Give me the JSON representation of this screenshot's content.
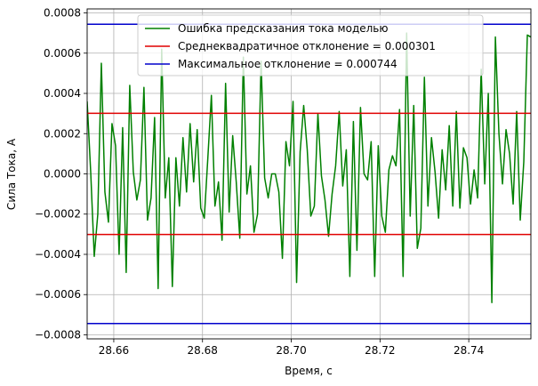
{
  "chart_data": {
    "type": "line",
    "title": "",
    "xlabel": "Время, с",
    "ylabel": "Сила Тока, А",
    "xlim": [
      28.654,
      28.754
    ],
    "ylim": [
      -0.00082,
      0.00082
    ],
    "grid": true,
    "legend_position": "top-center",
    "xticks": [
      28.66,
      28.68,
      28.7,
      28.72,
      28.74
    ],
    "xtick_labels": [
      "28.66",
      "28.68",
      "28.70",
      "28.72",
      "28.74"
    ],
    "yticks": [
      -0.0008,
      -0.0006,
      -0.0004,
      -0.0002,
      0.0,
      0.0002,
      0.0004,
      0.0006,
      0.0008
    ],
    "ytick_labels": [
      "−0.0008",
      "−0.0006",
      "−0.0004",
      "−0.0002",
      "0.0000",
      "0.0002",
      "0.0004",
      "0.0006",
      "0.0008"
    ],
    "series": [
      {
        "name": "Ошибка предсказания тока моделью",
        "color": "#008000",
        "x": [
          28.654,
          28.6548,
          28.6556,
          28.6564,
          28.6572,
          28.658,
          28.6588,
          28.6596,
          28.6604,
          28.6612,
          28.662,
          28.6628,
          28.6636,
          28.6644,
          28.6652,
          28.666,
          28.6668,
          28.6676,
          28.6684,
          28.6692,
          28.67,
          28.6708,
          28.6716,
          28.6724,
          28.6732,
          28.674,
          28.6748,
          28.6756,
          28.6764,
          28.6772,
          28.678,
          28.6788,
          28.6796,
          28.6804,
          28.6812,
          28.682,
          28.6828,
          28.6836,
          28.6844,
          28.6852,
          28.686,
          28.6868,
          28.6876,
          28.6884,
          28.6892,
          28.69,
          28.6908,
          28.6916,
          28.6924,
          28.6932,
          28.694,
          28.6948,
          28.6956,
          28.6964,
          28.6972,
          28.698,
          28.6988,
          28.6996,
          28.7004,
          28.7012,
          28.702,
          28.7028,
          28.7036,
          28.7044,
          28.7052,
          28.706,
          28.7068,
          28.7076,
          28.7084,
          28.7092,
          28.71,
          28.7108,
          28.7116,
          28.7124,
          28.7132,
          28.714,
          28.7148,
          28.7156,
          28.7164,
          28.7172,
          28.718,
          28.7188,
          28.7196,
          28.7204,
          28.7212,
          28.722,
          28.7228,
          28.7236,
          28.7244,
          28.7252,
          28.726,
          28.7268,
          28.7276,
          28.7284,
          28.7292,
          28.73,
          28.7308,
          28.7316,
          28.7324,
          28.7332,
          28.734,
          28.7348,
          28.7356,
          28.7364,
          28.7372,
          28.738,
          28.7388,
          28.7396,
          28.7404,
          28.7412,
          28.742,
          28.7428,
          28.7436,
          28.7444,
          28.7452,
          28.746,
          28.7468,
          28.7476,
          28.7484,
          28.7492,
          28.75,
          28.7508,
          28.7516,
          28.7524,
          28.7532,
          28.754
        ],
        "y": [
          0.00036,
          1e-05,
          -0.00041,
          -0.0002,
          0.00055,
          -9e-05,
          -0.00024,
          0.00025,
          0.00014,
          -0.0004,
          0.00023,
          -0.00049,
          0.00044,
          1e-05,
          -0.00013,
          -3e-05,
          0.00043,
          -0.00023,
          -0.00012,
          0.00028,
          -0.00057,
          0.00062,
          -0.00012,
          8e-05,
          -0.00056,
          8e-05,
          -0.00016,
          0.00018,
          -9e-05,
          0.00025,
          -4e-05,
          0.00022,
          -0.00017,
          -0.00022,
          8e-05,
          0.00039,
          -0.00016,
          -4e-05,
          -0.00033,
          0.00045,
          -0.00019,
          0.00019,
          -4e-05,
          -0.00032,
          0.00058,
          -0.0001,
          4e-05,
          -0.00029,
          -0.0002,
          0.00056,
          -2e-05,
          -0.00012,
          0.0,
          0.0,
          -9e-05,
          -0.00042,
          0.00016,
          4e-05,
          0.00036,
          -0.00054,
          0.00011,
          0.00034,
          0.00012,
          -0.00021,
          -0.00016,
          0.0003,
          -1e-05,
          -0.00013,
          -0.00031,
          -0.0001,
          4e-05,
          0.00031,
          -6e-05,
          0.00012,
          -0.00051,
          0.00026,
          -0.00038,
          0.00033,
          0.0,
          -3e-05,
          0.00016,
          -0.00051,
          0.00014,
          -0.00021,
          -0.00029,
          2e-05,
          9e-05,
          4e-05,
          0.00032,
          -0.00051,
          0.0007,
          -0.00021,
          0.00034,
          -0.00037,
          -0.00027,
          0.00048,
          -0.00016,
          0.00018,
          1e-05,
          -0.00022,
          0.00012,
          -8e-05,
          0.00024,
          -0.00016,
          0.00031,
          -0.00017,
          0.00013,
          8e-05,
          -0.00015,
          2e-05,
          -0.00012,
          0.00052,
          -5e-05,
          0.0004,
          -0.00064,
          0.00068,
          0.0002,
          -5e-05,
          0.00022,
          0.0001,
          -0.00015,
          0.00031,
          -0.00023,
          6e-05,
          0.00069,
          0.00068
        ]
      },
      {
        "name": "Среднеквадратичное отклонение = 0.000301",
        "color": "#e00000",
        "y_lines": [
          0.000301,
          -0.000301
        ]
      },
      {
        "name": "Максимальное отклонение = 0.000744",
        "color": "#0000cc",
        "y_lines": [
          0.000744,
          -0.000744
        ]
      }
    ]
  }
}
